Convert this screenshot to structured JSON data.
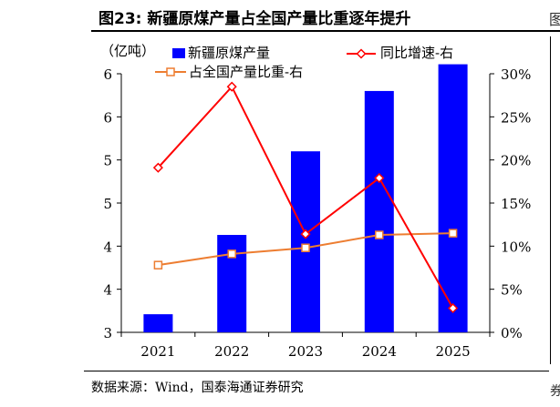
{
  "figure": {
    "title": "图23:  新疆原煤产量占全国产量比重逐年提升",
    "source": "数据来源：Wind，国泰海通证券研究",
    "right_edge_fragment": "图",
    "bottom_edge_fragment": "券"
  },
  "chart_data": {
    "type": "bar",
    "categories": [
      "2021",
      "2022",
      "2023",
      "2024",
      "2025"
    ],
    "left_axis": {
      "label": "（亿吨）",
      "ylim": [
        3,
        6
      ],
      "ticks": [
        "6",
        "6",
        "5",
        "5",
        "4",
        "4",
        "3"
      ]
    },
    "right_axis": {
      "ylim": [
        0,
        30
      ],
      "ticks": [
        "30%",
        "25%",
        "20%",
        "15%",
        "10%",
        "5%",
        "0%"
      ]
    },
    "series": [
      {
        "name": "新疆原煤产量",
        "type": "bar",
        "axis": "left",
        "color": "#0000ff",
        "values": [
          3.21,
          4.13,
          5.1,
          5.8,
          6.11
        ]
      },
      {
        "name": "同比增速-右",
        "type": "line",
        "axis": "right",
        "color": "#ff0000",
        "marker": "diamond",
        "values": [
          19.1,
          28.5,
          11.4,
          17.9,
          2.8
        ]
      },
      {
        "name": "占全国产量比重-右",
        "type": "line",
        "axis": "right",
        "color": "#ed7d31",
        "marker": "square",
        "values": [
          7.8,
          9.1,
          9.8,
          11.3,
          11.5
        ]
      }
    ],
    "legend": {
      "placement": "top"
    },
    "grid": false
  }
}
